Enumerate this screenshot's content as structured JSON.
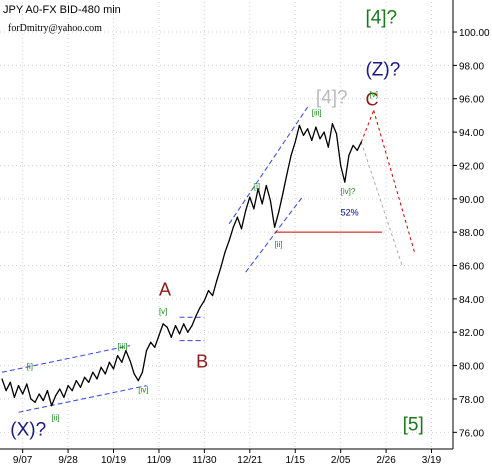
{
  "header": {
    "title": "JPY A0-FX BID-480 min",
    "author": "forDmitry@yahoo.com"
  },
  "chart_data": {
    "type": "line",
    "ylim": [
      75.0,
      101.8
    ],
    "xlim": [
      0,
      100
    ],
    "y_ticks": [
      76.0,
      78.0,
      80.0,
      82.0,
      84.0,
      86.0,
      88.0,
      90.0,
      92.0,
      94.0,
      96.0,
      98.0,
      100.0
    ],
    "y_tick_labels": [
      "76.00",
      "78.00",
      "80.00",
      "82.00",
      "84.00",
      "86.00",
      "88.00",
      "90.00",
      "92.00",
      "94.00",
      "96.00",
      "98.00",
      "100.00"
    ],
    "x_ticks": [
      {
        "label": "9/07",
        "x": 5
      },
      {
        "label": "9/28",
        "x": 16
      },
      {
        "label": "10/19",
        "x": 27
      },
      {
        "label": "11/09",
        "x": 38
      },
      {
        "label": "11/30",
        "x": 49
      },
      {
        "label": "12/21",
        "x": 60
      },
      {
        "label": "1/15",
        "x": 71
      },
      {
        "label": "2/05",
        "x": 82
      },
      {
        "label": "2/26",
        "x": 93
      },
      {
        "label": "3/19",
        "x": 104
      }
    ],
    "series": [
      {
        "points": [
          [
            0,
            79.2
          ],
          [
            1,
            78.5
          ],
          [
            2,
            79.0
          ],
          [
            3,
            78.1
          ],
          [
            4,
            78.8
          ],
          [
            5,
            78.3
          ],
          [
            6,
            78.9
          ],
          [
            7,
            78.0
          ],
          [
            8,
            77.8
          ],
          [
            9,
            78.3
          ],
          [
            10,
            77.9
          ],
          [
            11,
            78.5
          ],
          [
            12,
            77.6
          ],
          [
            13,
            78.2
          ],
          [
            14,
            78.6
          ],
          [
            15,
            78.1
          ],
          [
            16,
            78.8
          ],
          [
            17,
            78.5
          ],
          [
            18,
            79.1
          ],
          [
            19,
            78.7
          ],
          [
            20,
            79.3
          ],
          [
            21,
            79.0
          ],
          [
            22,
            79.6
          ],
          [
            23,
            79.2
          ],
          [
            24,
            79.9
          ],
          [
            25,
            79.5
          ],
          [
            26,
            80.2
          ],
          [
            27,
            79.8
          ],
          [
            28,
            80.6
          ],
          [
            29,
            80.2
          ],
          [
            30,
            80.9
          ],
          [
            31,
            80.3
          ],
          [
            32,
            79.5
          ],
          [
            33,
            79.1
          ],
          [
            34,
            79.6
          ],
          [
            35,
            80.9
          ],
          [
            36,
            81.4
          ],
          [
            37,
            81.1
          ],
          [
            38,
            81.8
          ],
          [
            39,
            82.5
          ],
          [
            40,
            82.3
          ],
          [
            41,
            81.7
          ],
          [
            42,
            82.4
          ],
          [
            43,
            81.9
          ],
          [
            44,
            82.5
          ],
          [
            45,
            82.0
          ],
          [
            46,
            82.4
          ],
          [
            47,
            83.0
          ],
          [
            48,
            83.5
          ],
          [
            49,
            83.9
          ],
          [
            50,
            84.5
          ],
          [
            51,
            84.2
          ],
          [
            52,
            85.1
          ],
          [
            53,
            85.9
          ],
          [
            54,
            86.8
          ],
          [
            55,
            87.5
          ],
          [
            56,
            88.3
          ],
          [
            57,
            88.9
          ],
          [
            58,
            88.2
          ],
          [
            59,
            89.3
          ],
          [
            60,
            90.1
          ],
          [
            61,
            89.4
          ],
          [
            62,
            90.6
          ],
          [
            63,
            89.7
          ],
          [
            64,
            90.8
          ],
          [
            65,
            89.9
          ],
          [
            66,
            88.3
          ],
          [
            67,
            89.2
          ],
          [
            68,
            90.3
          ],
          [
            69,
            91.5
          ],
          [
            70,
            92.6
          ],
          [
            71,
            93.4
          ],
          [
            72,
            94.4
          ],
          [
            73,
            93.8
          ],
          [
            74,
            94.2
          ],
          [
            75,
            93.5
          ],
          [
            76,
            94.3
          ],
          [
            77,
            93.6
          ],
          [
            78,
            94.0
          ],
          [
            79,
            93.1
          ],
          [
            80,
            94.5
          ],
          [
            81,
            93.9
          ],
          [
            82,
            92.0
          ],
          [
            83,
            91.0
          ],
          [
            84,
            92.6
          ],
          [
            85,
            93.2
          ],
          [
            86,
            92.9
          ],
          [
            87,
            93.4
          ]
        ]
      }
    ],
    "channels": [
      {
        "color": "#3344dd",
        "a": [
          [
            0,
            79.6
          ],
          [
            31,
            81.2
          ]
        ],
        "b": [
          [
            4,
            77.2
          ],
          [
            35,
            78.8
          ]
        ]
      },
      {
        "color": "#3344dd",
        "a": [
          [
            43,
            82.9
          ],
          [
            49,
            82.9
          ]
        ],
        "b": [
          [
            43,
            81.5
          ],
          [
            49,
            81.5
          ]
        ]
      },
      {
        "color": "#3344dd",
        "a": [
          [
            55,
            88.5
          ],
          [
            74,
            95.5
          ]
        ],
        "b": [
          [
            59,
            85.6
          ],
          [
            73,
            90.2
          ]
        ]
      }
    ],
    "support_line": {
      "color": "#cc0000",
      "value": 88.0,
      "x_start": 66,
      "x_end": 92
    },
    "projections": [
      {
        "color": "#cc0000",
        "dash": "3,3",
        "points": [
          [
            87,
            93.4
          ],
          [
            90,
            95.3
          ]
        ]
      },
      {
        "color": "#cc0000",
        "dash": "3,3",
        "points": [
          [
            90,
            95.3
          ],
          [
            100,
            86.7
          ]
        ]
      },
      {
        "color": "#aaaaaa",
        "dash": "3,3",
        "points": [
          [
            87,
            93.4
          ],
          [
            97,
            85.9
          ]
        ]
      }
    ],
    "wave_labels": [
      {
        "text": "[4]?",
        "x": 88,
        "y": 100.5,
        "size": 19,
        "color": "#1a7a1a"
      },
      {
        "text": "(Z)?",
        "x": 88,
        "y": 97.4,
        "size": 19,
        "color": "#1a1a80"
      },
      {
        "text": "C",
        "x": 88,
        "y": 95.6,
        "size": 18,
        "color": "#8b1a1a"
      },
      {
        "text": "[4]?",
        "x": 76,
        "y": 95.7,
        "size": 19,
        "color": "#bbbbbb"
      },
      {
        "text": "[v]",
        "x": 89,
        "y": 96.1,
        "size": 8,
        "color": "#1a8a1a"
      },
      {
        "text": "[iii]",
        "x": 75,
        "y": 95.0,
        "size": 8,
        "color": "#1a8a1a"
      },
      {
        "text": "[i]",
        "x": 61,
        "y": 90.6,
        "size": 8,
        "color": "#1a8a1a"
      },
      {
        "text": "[ii]",
        "x": 66,
        "y": 87.1,
        "size": 8,
        "color": "#1a8a1a"
      },
      {
        "text": "[iv]?",
        "x": 82,
        "y": 90.3,
        "size": 8,
        "color": "#1a8a1a"
      },
      {
        "text": "52%",
        "x": 82,
        "y": 89.0,
        "size": 9,
        "color": "#00008b"
      },
      {
        "text": "A",
        "x": 38,
        "y": 84.2,
        "size": 18,
        "color": "#8b1a1a"
      },
      {
        "text": "[v]",
        "x": 38,
        "y": 83.1,
        "size": 8,
        "color": "#1a8a1a"
      },
      {
        "text": "B",
        "x": 47,
        "y": 79.9,
        "size": 18,
        "color": "#8b1a1a"
      },
      {
        "text": "[iii]",
        "x": 28,
        "y": 81.0,
        "size": 8,
        "color": "#1a8a1a"
      },
      {
        "text": "[iv]",
        "x": 33,
        "y": 78.4,
        "size": 8,
        "color": "#1a8a1a"
      },
      {
        "text": "[i]",
        "x": 6,
        "y": 79.8,
        "size": 8,
        "color": "#1a8a1a"
      },
      {
        "text": "(X)?",
        "x": 2,
        "y": 75.8,
        "size": 19,
        "color": "#1a1a80"
      },
      {
        "text": "[ii]",
        "x": 12,
        "y": 76.7,
        "size": 8,
        "color": "#1a8a1a"
      },
      {
        "text": "[5]",
        "x": 97,
        "y": 76.1,
        "size": 19,
        "color": "#1a7a1a"
      }
    ]
  }
}
